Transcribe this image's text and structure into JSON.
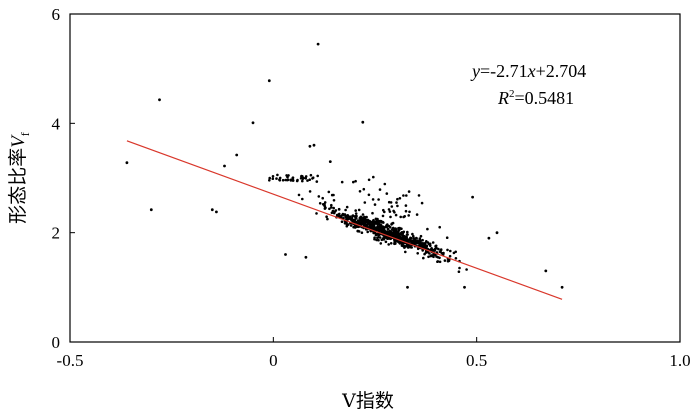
{
  "chart_data": {
    "type": "scatter",
    "xlabel": "V指数",
    "ylabel_main": "形态比率",
    "ylabel_var": "V",
    "ylabel_sub": "f",
    "xlim": [
      -0.5,
      1.0
    ],
    "ylim": [
      0,
      6
    ],
    "x_ticks": [
      -0.5,
      0,
      0.5,
      1.0
    ],
    "x_tick_labels": [
      "-0.5",
      "0",
      "0.5",
      "1.0"
    ],
    "y_ticks": [
      0,
      2,
      4,
      6
    ],
    "y_tick_labels": [
      "0",
      "2",
      "4",
      "6"
    ],
    "fit_line": {
      "slope": -2.71,
      "intercept": 2.704,
      "x_range": [
        -0.36,
        0.71
      ],
      "color": "#d9372b"
    },
    "annotation": {
      "eq_y": "y",
      "eq_rest": "=-2.71",
      "eq_x": "x",
      "eq_tail": "+2.704",
      "r2_R": "R",
      "r2_sup": "2",
      "r2_value": "=0.5481"
    },
    "outliers": [
      {
        "x": -0.36,
        "y": 3.28
      },
      {
        "x": -0.3,
        "y": 2.42
      },
      {
        "x": -0.28,
        "y": 4.43
      },
      {
        "x": 0.11,
        "y": 5.45
      },
      {
        "x": -0.01,
        "y": 4.78
      },
      {
        "x": -0.05,
        "y": 4.01
      },
      {
        "x": 0.22,
        "y": 4.02
      },
      {
        "x": -0.14,
        "y": 2.38
      },
      {
        "x": -0.15,
        "y": 2.42
      },
      {
        "x": -0.12,
        "y": 3.22
      },
      {
        "x": -0.09,
        "y": 3.42
      },
      {
        "x": 0.09,
        "y": 3.58
      },
      {
        "x": 0.1,
        "y": 3.6
      },
      {
        "x": 0.14,
        "y": 3.3
      },
      {
        "x": 0.67,
        "y": 1.3
      },
      {
        "x": 0.71,
        "y": 1.0
      },
      {
        "x": 0.33,
        "y": 1.0
      },
      {
        "x": 0.47,
        "y": 1.0
      },
      {
        "x": 0.49,
        "y": 2.65
      },
      {
        "x": 0.55,
        "y": 2.0
      },
      {
        "x": 0.53,
        "y": 1.9
      },
      {
        "x": 0.03,
        "y": 1.6
      },
      {
        "x": 0.08,
        "y": 1.55
      }
    ],
    "cluster": {
      "count": 760,
      "x_range": [
        -0.1,
        0.56
      ],
      "center_x": 0.28,
      "spread_x": 0.12,
      "noise": 0.22
    }
  }
}
